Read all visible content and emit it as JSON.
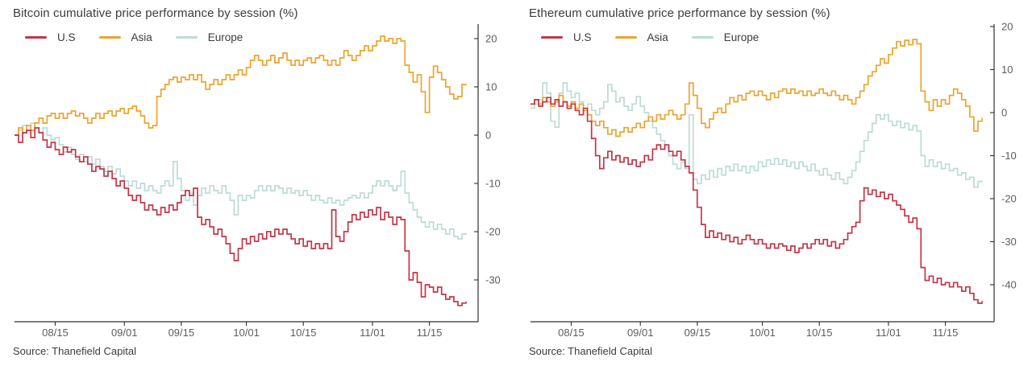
{
  "chart_data": [
    {
      "type": "line",
      "subtype": "step",
      "title": "Bitcoin cumulative price performance by session (%)",
      "source": "Source: Thanefield Capital",
      "legend_position": "top-left",
      "grid": false,
      "y_axis_side": "right",
      "x_tick_labels": [
        "08/15",
        "09/01",
        "09/15",
        "10/01",
        "10/15",
        "11/01",
        "11/15"
      ],
      "x_tick_days": [
        10,
        27,
        41,
        57,
        71,
        88,
        102
      ],
      "y_ticks": [
        20,
        10,
        0,
        -10,
        -20,
        -30
      ],
      "ylim": [
        -38.5,
        23
      ],
      "xlim_days": [
        0,
        111
      ],
      "axis_color": "#2f2f2f",
      "tick_label_color": "#5d5d5d",
      "series": [
        {
          "name": "U.S",
          "color": "#c43548",
          "values": [
            0,
            -1.5,
            0.5,
            1,
            -0.5,
            1.5,
            0.5,
            -1,
            -2.5,
            -1.5,
            -3,
            -4,
            -2.5,
            -3.5,
            -3,
            -4.5,
            -5.5,
            -4.5,
            -6,
            -7.5,
            -6.5,
            -7,
            -8.5,
            -7.5,
            -9,
            -10.5,
            -9.5,
            -11,
            -12.5,
            -13.5,
            -12.5,
            -14,
            -15.5,
            -14.5,
            -15.5,
            -16.5,
            -15,
            -16,
            -14.5,
            -15.5,
            -14,
            -12.5,
            -11.5,
            -12.5,
            -11,
            -17,
            -18.5,
            -17.5,
            -19,
            -20.5,
            -19.5,
            -21,
            -22.5,
            -24.5,
            -26,
            -23.5,
            -21.5,
            -22.5,
            -21,
            -22,
            -20.5,
            -21.5,
            -20,
            -21,
            -19.5,
            -20.5,
            -19.5,
            -20.5,
            -21.5,
            -22.5,
            -21.5,
            -23,
            -22,
            -23.5,
            -22.5,
            -23.5,
            -22.5,
            -23.5,
            -15.5,
            -21,
            -22,
            -20,
            -18,
            -16.5,
            -17.5,
            -16,
            -17,
            -15.5,
            -16.5,
            -15,
            -17.5,
            -16,
            -17,
            -18.5,
            -17,
            -17.5,
            -24,
            -30,
            -28.5,
            -30.5,
            -33.5,
            -31,
            -31.5,
            -32.5,
            -31.5,
            -33,
            -34,
            -33.5,
            -34.5,
            -35.3,
            -34.8,
            -34.5
          ]
        },
        {
          "name": "Asia",
          "color": "#eca42f",
          "values": [
            0,
            1.5,
            0.5,
            2,
            1,
            2.5,
            3.5,
            2.5,
            4,
            4.5,
            3.5,
            4.5,
            3.5,
            4.5,
            5,
            4,
            4.5,
            3.5,
            2.5,
            3.5,
            4.5,
            3.5,
            4.5,
            5,
            4,
            5,
            5.5,
            4.5,
            5.5,
            6,
            5,
            4,
            2.5,
            1.5,
            2,
            8,
            9.5,
            10.5,
            11.5,
            12,
            11,
            12,
            11.5,
            12.5,
            11.5,
            12.5,
            11,
            9.5,
            10.5,
            11.5,
            10.5,
            11.5,
            12.5,
            11.5,
            12.5,
            13.5,
            12.5,
            14,
            15.5,
            16.5,
            15.5,
            14.5,
            15.5,
            16.5,
            15,
            16,
            17,
            15.5,
            14.5,
            15.5,
            14.5,
            15.5,
            16,
            15,
            16,
            16.5,
            15.5,
            14.5,
            15.5,
            14.5,
            16,
            17.5,
            16.5,
            15.5,
            16.5,
            17.5,
            18.5,
            17.5,
            18.5,
            19.5,
            20.5,
            19.5,
            20,
            19,
            20,
            19.5,
            14.5,
            13,
            11,
            12.5,
            9,
            4.7,
            12,
            14.3,
            13,
            11.5,
            10,
            8.5,
            7.5,
            8,
            10.5,
            10.3
          ]
        },
        {
          "name": "Europe",
          "color": "#bcdbd6",
          "values": [
            0,
            1,
            2,
            1,
            2.5,
            1.5,
            0.5,
            1.5,
            0,
            -1,
            -0.5,
            -2,
            -3.5,
            -2.5,
            -4,
            -5,
            -4,
            -5.5,
            -4.5,
            -6,
            -5,
            -6.5,
            -7.5,
            -6.5,
            -8,
            -7,
            -8.5,
            -9.5,
            -10.5,
            -9.5,
            -11,
            -10,
            -11.5,
            -10.5,
            -11.5,
            -12,
            -10.5,
            -9.5,
            -10.5,
            -5.5,
            -9,
            -11.5,
            -13.5,
            -12,
            -14.5,
            -12.5,
            -11,
            -12,
            -10.5,
            -11.5,
            -12,
            -10.5,
            -12,
            -13.5,
            -16.5,
            -12.5,
            -13.5,
            -12.5,
            -13,
            -11.5,
            -10.5,
            -11.5,
            -10.5,
            -11.5,
            -10.5,
            -11,
            -12,
            -11,
            -12,
            -11.5,
            -12.5,
            -11.5,
            -12.5,
            -13.5,
            -12.5,
            -13.5,
            -14,
            -13,
            -14,
            -13.5,
            -14.5,
            -13.5,
            -13,
            -12.5,
            -13,
            -12,
            -13,
            -12,
            -10.5,
            -9.5,
            -10.5,
            -9.5,
            -10.5,
            -11.5,
            -10.5,
            -7.5,
            -12,
            -14,
            -15.5,
            -17,
            -18,
            -19,
            -18,
            -19.5,
            -18.5,
            -19.5,
            -20.5,
            -19.5,
            -21,
            -21.5,
            -20.5,
            -20.3
          ]
        }
      ]
    },
    {
      "type": "line",
      "subtype": "step",
      "title": "Ethereum cumulative price performance by session (%)",
      "source": "Source: Thanefield Capital",
      "legend_position": "top-left",
      "grid": false,
      "y_axis_side": "right",
      "x_tick_labels": [
        "08/15",
        "09/01",
        "09/15",
        "10/01",
        "10/15",
        "11/01",
        "11/15"
      ],
      "x_tick_days": [
        10,
        27,
        41,
        57,
        71,
        88,
        102
      ],
      "y_ticks": [
        20,
        10,
        0,
        -10,
        -20,
        -30,
        -40
      ],
      "ylim": [
        -48.5,
        20.5
      ],
      "xlim_days": [
        0,
        111
      ],
      "axis_color": "#2f2f2f",
      "tick_label_color": "#5d5d5d",
      "series": [
        {
          "name": "U.S",
          "color": "#c43548",
          "values": [
            2,
            3,
            1.5,
            2.5,
            3.5,
            2,
            3,
            1.5,
            2.5,
            1,
            2,
            0.5,
            -0.5,
            1,
            -2,
            -6,
            -10,
            -13,
            -10.5,
            -9,
            -11,
            -10,
            -11.5,
            -10.5,
            -12,
            -11,
            -12.5,
            -11.5,
            -10,
            -11,
            -8.5,
            -7.5,
            -8.5,
            -7.5,
            -9,
            -10,
            -9,
            -11,
            -12.5,
            -14,
            -18,
            -22,
            -26,
            -29,
            -27.5,
            -29,
            -28,
            -29.5,
            -28.5,
            -30,
            -29,
            -30.5,
            -29.5,
            -28.5,
            -29.5,
            -30.5,
            -29.5,
            -30.5,
            -31.5,
            -30.5,
            -31.5,
            -30.5,
            -31,
            -32,
            -31,
            -32.5,
            -31.5,
            -30.5,
            -31.5,
            -30.5,
            -29.5,
            -30.5,
            -29.5,
            -31,
            -30,
            -31.5,
            -30.5,
            -29.5,
            -28,
            -26.5,
            -25.5,
            -20.5,
            -17.5,
            -19,
            -18,
            -19.5,
            -18.5,
            -20,
            -19,
            -20.5,
            -21.5,
            -22.5,
            -24,
            -25.5,
            -24.5,
            -27,
            -36,
            -39,
            -38,
            -39.5,
            -38.5,
            -40,
            -39.5,
            -40.5,
            -39.5,
            -40.5,
            -41.5,
            -40.5,
            -42,
            -43.5,
            -44.3,
            -43.8
          ]
        },
        {
          "name": "Asia",
          "color": "#eca42f",
          "values": [
            2,
            3,
            2,
            3.5,
            2.5,
            1.5,
            2.5,
            4,
            2.5,
            1.5,
            2.5,
            1,
            2,
            0.5,
            -0.5,
            -2,
            -3,
            -2,
            -3.5,
            -5,
            -4,
            -5.5,
            -4.5,
            -3.5,
            -4.5,
            -3.5,
            -2.5,
            -3.5,
            -2,
            -1,
            -2,
            -0.5,
            -1.5,
            -0.5,
            0.5,
            -0.5,
            -1.5,
            -0.5,
            2,
            6.9,
            4,
            1,
            -2.5,
            -3.5,
            -1.5,
            0,
            1,
            0,
            2,
            3.5,
            2.5,
            4,
            3,
            4.5,
            5,
            4,
            5,
            4,
            3,
            4.5,
            3.5,
            5,
            5.5,
            4.5,
            5.5,
            4.5,
            5,
            4,
            5,
            4,
            4.5,
            5.5,
            4.5,
            4,
            5,
            4,
            3,
            4,
            3,
            2,
            3.5,
            5,
            6.5,
            8.5,
            9.5,
            11,
            12.5,
            11.5,
            13.5,
            15,
            16.5,
            15.5,
            16.8,
            15.8,
            17,
            16,
            5,
            2.5,
            0.5,
            3,
            1.5,
            3,
            2,
            4,
            5.5,
            4.5,
            3,
            1.5,
            -1,
            -4.3,
            -2,
            -1.2
          ]
        },
        {
          "name": "Europe",
          "color": "#bcdbd6",
          "values": [
            1,
            2,
            3,
            6.9,
            4.5,
            -2,
            -3.4,
            4.5,
            6.9,
            5,
            3.5,
            4.5,
            2.5,
            1,
            2,
            0.5,
            -0.5,
            1,
            2.5,
            6.5,
            5,
            2.5,
            3.5,
            1.5,
            0.5,
            2,
            3.7,
            1.5,
            0,
            -2,
            -3.5,
            -5,
            -6.5,
            -8,
            -10,
            -12,
            -13,
            -11.5,
            -13,
            -0.5,
            -15.5,
            -16.5,
            -14.5,
            -15.5,
            -13.5,
            -15,
            -13,
            -14.5,
            -12.5,
            -13.5,
            -12,
            -13.5,
            -12.5,
            -14,
            -12.5,
            -13.5,
            -11.5,
            -12.5,
            -11,
            -12,
            -10.7,
            -12,
            -11,
            -12.5,
            -11.5,
            -13,
            -11.5,
            -12.5,
            -13.5,
            -12,
            -13.5,
            -14.5,
            -13,
            -14.5,
            -15.5,
            -14,
            -15.5,
            -16.5,
            -15,
            -13.5,
            -11.5,
            -9,
            -6.5,
            -4.5,
            -2.5,
            -0.5,
            -1.5,
            -0.5,
            -2,
            -3,
            -2,
            -3.5,
            -2.5,
            -4,
            -3,
            -4.3,
            -10,
            -12.5,
            -11,
            -12.5,
            -11.5,
            -13,
            -12,
            -13.5,
            -13,
            -14.5,
            -14,
            -15.5,
            -15,
            -17.3,
            -16,
            -15.8
          ]
        }
      ]
    }
  ]
}
